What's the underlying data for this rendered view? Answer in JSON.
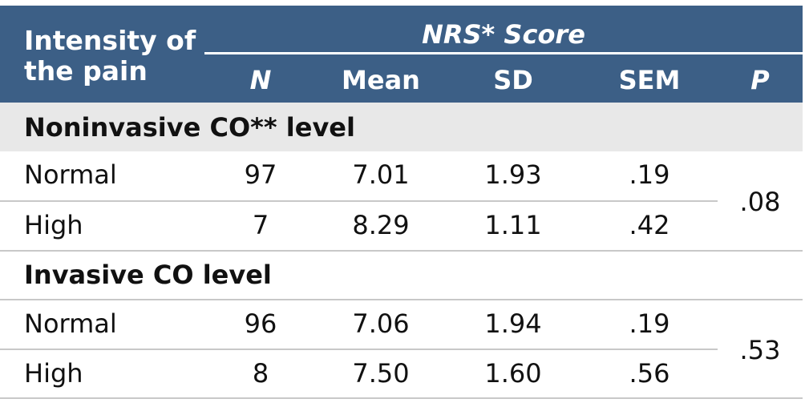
{
  "header": {
    "title_line1": "Intensity of",
    "title_line2": "the pain",
    "group_label": "NRS* Score",
    "columns": [
      "N",
      "Mean",
      "SD",
      "SEM",
      "P"
    ]
  },
  "sections": [
    {
      "title": "Noninvasive CO** level",
      "rows": [
        {
          "label": "Normal",
          "n": "97",
          "mean": "7.01",
          "sd": "1.93",
          "sem": ".19"
        },
        {
          "label": "High",
          "n": "7",
          "mean": "8.29",
          "sd": "1.11",
          "sem": ".42"
        }
      ],
      "p": ".08"
    },
    {
      "title": "Invasive CO level",
      "rows": [
        {
          "label": "Normal",
          "n": "96",
          "mean": "7.06",
          "sd": "1.94",
          "sem": ".19"
        },
        {
          "label": "High",
          "n": "8",
          "mean": "7.50",
          "sd": "1.60",
          "sem": ".56"
        }
      ],
      "p": ".53"
    }
  ],
  "colors": {
    "header_bg": "#3c5f86",
    "section_bg": "#e8e8e8",
    "rule": "#c8c8c8"
  }
}
